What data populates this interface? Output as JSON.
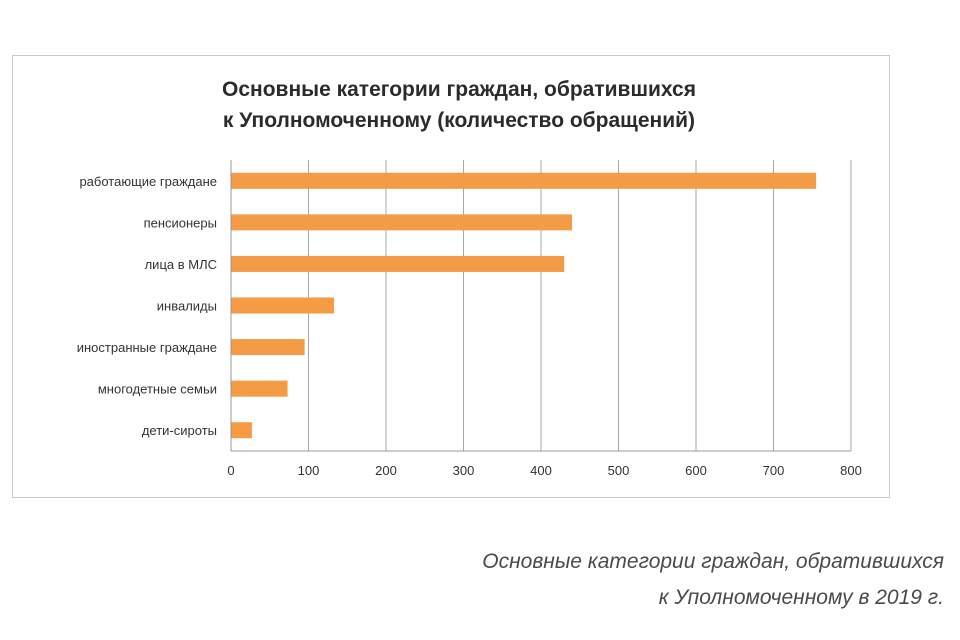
{
  "chart_data": {
    "type": "bar",
    "orientation": "horizontal",
    "title_lines": [
      "Основные категории граждан, обратившихся",
      "к Уполномоченному  (количество обращений)"
    ],
    "categories": [
      "работающие граждане",
      "пенсионеры",
      "лица в МЛС",
      "инвалиды",
      "иностранные граждане",
      "многодетные семьи",
      "дети-сироты"
    ],
    "values": [
      755,
      440,
      430,
      133,
      95,
      73,
      27
    ],
    "xlim": [
      0,
      800
    ],
    "xticks": [
      0,
      100,
      200,
      300,
      400,
      500,
      600,
      700,
      800
    ],
    "grid": true,
    "bar_color": "#f39b45",
    "xlabel": "",
    "ylabel": ""
  },
  "caption": {
    "line1": "Основные категории граждан, обратившихся",
    "line2": "к Уполномоченному в 2019 г."
  }
}
